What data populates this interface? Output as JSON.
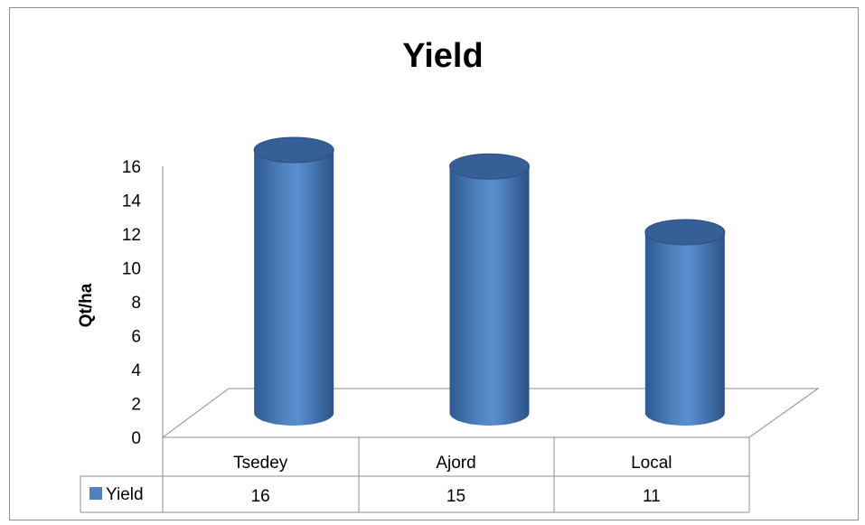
{
  "chart_data": {
    "type": "bar",
    "title": "Yield",
    "xlabel": "",
    "ylabel": "Qt/ha",
    "ylim": [
      0,
      16
    ],
    "yticks": [
      0,
      2,
      4,
      6,
      8,
      10,
      12,
      14,
      16
    ],
    "categories": [
      "Tsedey",
      "Ajord",
      "Local"
    ],
    "series": [
      {
        "name": "Yield",
        "values": [
          16,
          15,
          11
        ],
        "color": "#4f81bd"
      }
    ],
    "data_table": true,
    "bar_shape": "3d-cylinder",
    "grid": false,
    "legend": "in data table"
  }
}
